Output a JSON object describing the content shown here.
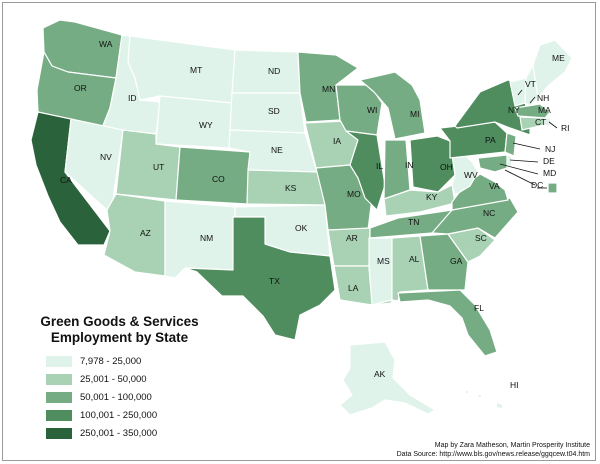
{
  "legend": {
    "title_line1": "Green Goods & Services",
    "title_line2": "Employment by State",
    "classes": [
      {
        "label": "7,978 - 25,000",
        "color": "#dff3ea"
      },
      {
        "label": "25,001 - 50,000",
        "color": "#a8d2b3"
      },
      {
        "label": "50,001 - 100,000",
        "color": "#76ac84"
      },
      {
        "label": "100,001 - 250,000",
        "color": "#4f8c5e"
      },
      {
        "label": "250,001 - 350,000",
        "color": "#2a633b"
      }
    ]
  },
  "credits": {
    "line1": "Map by Zara Matheson, Martin Prosperity Institute",
    "line2": "Data Source: http://www.bls.gov/news.release/ggqcew.t04.htm"
  },
  "states": [
    {
      "abbr": "WA",
      "class": 2
    },
    {
      "abbr": "OR",
      "class": 2
    },
    {
      "abbr": "CA",
      "class": 4
    },
    {
      "abbr": "ID",
      "class": 0
    },
    {
      "abbr": "NV",
      "class": 0
    },
    {
      "abbr": "MT",
      "class": 0
    },
    {
      "abbr": "WY",
      "class": 0
    },
    {
      "abbr": "UT",
      "class": 1
    },
    {
      "abbr": "AZ",
      "class": 1
    },
    {
      "abbr": "CO",
      "class": 2
    },
    {
      "abbr": "NM",
      "class": 0
    },
    {
      "abbr": "ND",
      "class": 0
    },
    {
      "abbr": "SD",
      "class": 0
    },
    {
      "abbr": "NE",
      "class": 0
    },
    {
      "abbr": "KS",
      "class": 1
    },
    {
      "abbr": "OK",
      "class": 0
    },
    {
      "abbr": "TX",
      "class": 3
    },
    {
      "abbr": "MN",
      "class": 2
    },
    {
      "abbr": "IA",
      "class": 1
    },
    {
      "abbr": "MO",
      "class": 2
    },
    {
      "abbr": "AR",
      "class": 1
    },
    {
      "abbr": "LA",
      "class": 1
    },
    {
      "abbr": "WI",
      "class": 2
    },
    {
      "abbr": "IL",
      "class": 3
    },
    {
      "abbr": "MI",
      "class": 2
    },
    {
      "abbr": "IN",
      "class": 2
    },
    {
      "abbr": "OH",
      "class": 3
    },
    {
      "abbr": "KY",
      "class": 1
    },
    {
      "abbr": "TN",
      "class": 2
    },
    {
      "abbr": "MS",
      "class": 0
    },
    {
      "abbr": "AL",
      "class": 1
    },
    {
      "abbr": "GA",
      "class": 2
    },
    {
      "abbr": "FL",
      "class": 2
    },
    {
      "abbr": "SC",
      "class": 1
    },
    {
      "abbr": "NC",
      "class": 2
    },
    {
      "abbr": "VA",
      "class": 2
    },
    {
      "abbr": "WV",
      "class": 0
    },
    {
      "abbr": "PA",
      "class": 3
    },
    {
      "abbr": "NY",
      "class": 3
    },
    {
      "abbr": "VT",
      "class": 0
    },
    {
      "abbr": "NH",
      "class": 0
    },
    {
      "abbr": "ME",
      "class": 0
    },
    {
      "abbr": "MA",
      "class": 2
    },
    {
      "abbr": "RI",
      "class": 0
    },
    {
      "abbr": "CT",
      "class": 1
    },
    {
      "abbr": "NJ",
      "class": 2
    },
    {
      "abbr": "DE",
      "class": 0
    },
    {
      "abbr": "MD",
      "class": 2
    },
    {
      "abbr": "DC",
      "class": 2
    },
    {
      "abbr": "AK",
      "class": 0
    },
    {
      "abbr": "HI",
      "class": 0
    }
  ]
}
